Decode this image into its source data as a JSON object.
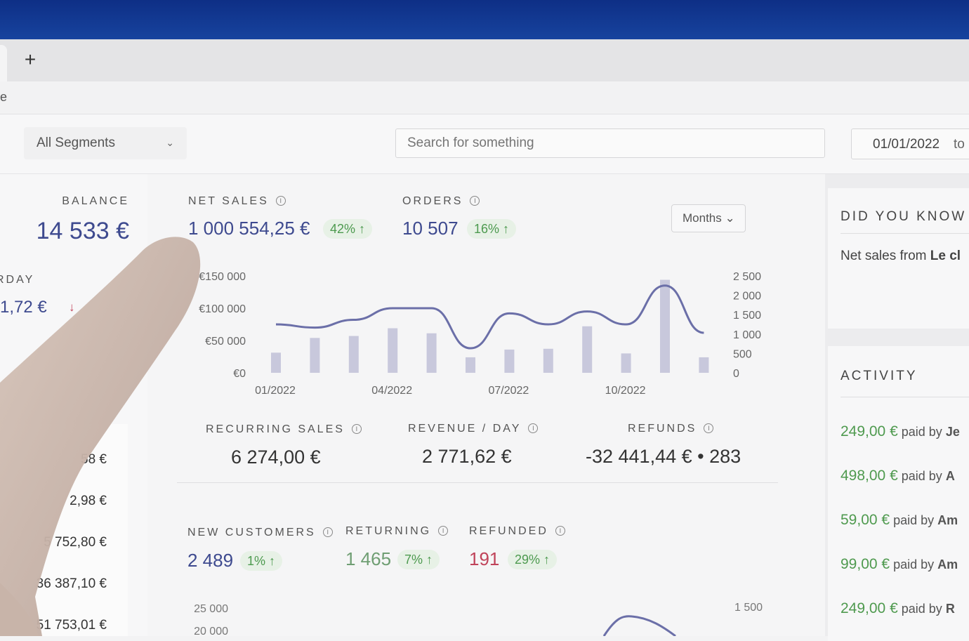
{
  "browser": {
    "new_tab_label": "+",
    "address_fragment": "e"
  },
  "toolbar": {
    "segment_value": "All Segments",
    "search_placeholder": "Search for something",
    "date_from": "01/01/2022",
    "date_to_label": "to"
  },
  "left": {
    "balance_label": "BALANCE",
    "balance_value": "14 533 €",
    "yesterday_label": "RDAY",
    "yesterday_value": "1,72 €",
    "yesterday_arrow": "↓",
    "list_values": [
      "58 €",
      "2,98 €",
      "5 752,80 €",
      "36 387,10 €",
      "51 753,01 €"
    ]
  },
  "kpis": {
    "net_sales": {
      "label": "NET SALES",
      "value": "1 000 554,25 €",
      "change": "42% ↑"
    },
    "orders": {
      "label": "ORDERS",
      "value": "10 507",
      "change": "16% ↑"
    },
    "period": "Months",
    "recurring": {
      "label": "RECURRING SALES",
      "value": "6 274,00 €"
    },
    "revenue_day": {
      "label": "REVENUE / DAY",
      "value": "2 771,62 €"
    },
    "refunds": {
      "label": "REFUNDS",
      "value": "-32 441,44 €",
      "dot": "•",
      "count": "283"
    },
    "new_customers": {
      "label": "NEW CUSTOMERS",
      "value": "2 489",
      "change": "1% ↑"
    },
    "returning": {
      "label": "RETURNING",
      "value": "1 465",
      "change": "7% ↑"
    },
    "refunded": {
      "label": "REFUNDED",
      "value": "191",
      "change": "29% ↑"
    }
  },
  "colors": {
    "accent": "#3e4a8f",
    "positive": "#4d9a4f",
    "negative": "#c0435a",
    "line": "#6b6fa8",
    "bar": "#c8c8dc"
  },
  "chart_data": [
    {
      "type": "bar+line",
      "x_ticks": [
        "01/2022",
        "04/2022",
        "07/2022",
        "10/2022"
      ],
      "categories": [
        "01/2022",
        "02/2022",
        "03/2022",
        "04/2022",
        "05/2022",
        "06/2022",
        "07/2022",
        "08/2022",
        "09/2022",
        "10/2022",
        "11/2022",
        "12/2022"
      ],
      "line_values": [
        75000,
        70000,
        82000,
        100000,
        100000,
        38000,
        92000,
        75000,
        95000,
        75000,
        135000,
        62000
      ],
      "bar_values": [
        520,
        900,
        950,
        1150,
        1020,
        400,
        600,
        620,
        1200,
        500,
        2400,
        400
      ],
      "left_axis": {
        "ticks": [
          "€0",
          "€50 000",
          "€100 000",
          "€150 000"
        ],
        "range": [
          0,
          150000
        ]
      },
      "right_axis": {
        "ticks": [
          "0",
          "500",
          "1 000",
          "1 500",
          "2 000",
          "2 500"
        ],
        "range": [
          0,
          2500
        ]
      }
    },
    {
      "type": "line",
      "left_axis": {
        "ticks": [
          "20 000",
          "25 000"
        ]
      },
      "right_axis": {
        "ticks": [
          "1 500"
        ]
      }
    }
  ],
  "right": {
    "did_you_know_title": "DID YOU KNOW",
    "did_you_know_text": "Net sales from ",
    "did_you_know_bold": "Le cl",
    "activity_title": "ACTIVITY",
    "paid_by": "paid by",
    "activity": [
      {
        "amount": "249,00 €",
        "who": "Je"
      },
      {
        "amount": "498,00 €",
        "who": "A"
      },
      {
        "amount": "59,00 €",
        "who": "Am"
      },
      {
        "amount": "99,00 €",
        "who": "Am"
      },
      {
        "amount": "249,00 €",
        "who": "R"
      }
    ]
  }
}
